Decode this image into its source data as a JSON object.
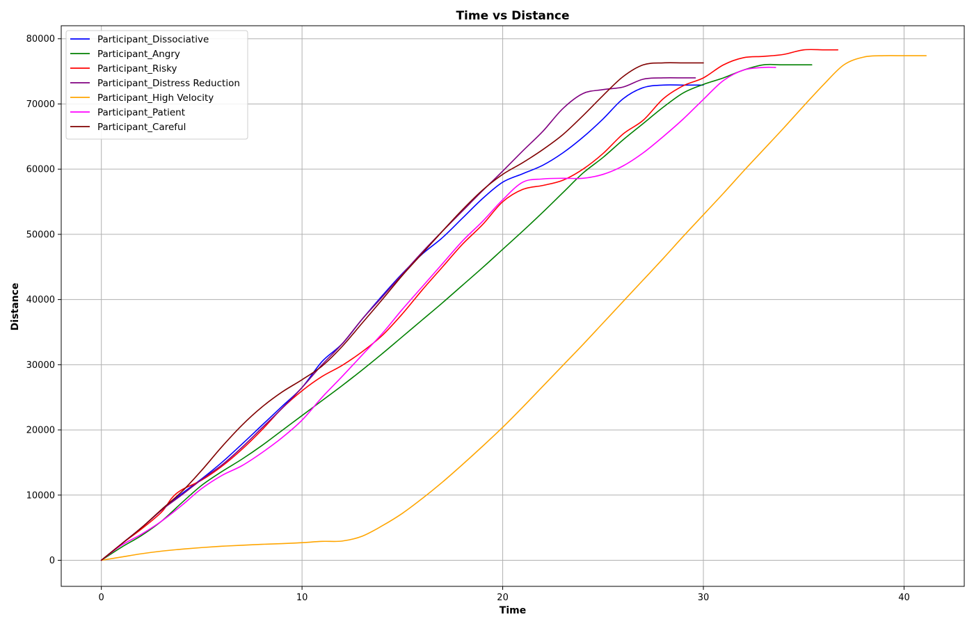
{
  "chart_data": {
    "type": "line",
    "title": "Time vs Distance",
    "xlabel": "Time",
    "ylabel": "Distance",
    "xlim": [
      -2,
      43
    ],
    "ylim": [
      -4000,
      82000
    ],
    "xticks": [
      0,
      10,
      20,
      30,
      40
    ],
    "yticks": [
      0,
      10000,
      20000,
      30000,
      40000,
      50000,
      60000,
      70000,
      80000
    ],
    "grid": true,
    "legend_position": "top-left",
    "series": [
      {
        "name": "Participant_Dissociative",
        "color": "#0000ff",
        "x": [
          0,
          1,
          2,
          3,
          4,
          5,
          6,
          7,
          8,
          9,
          10,
          11,
          12,
          13,
          14,
          15,
          16,
          17,
          18,
          19,
          20,
          21,
          22,
          23,
          24,
          25,
          26,
          27,
          28,
          29,
          30
        ],
        "y": [
          0,
          2500,
          5000,
          7700,
          10200,
          12500,
          15000,
          17800,
          20700,
          23600,
          26500,
          30500,
          33200,
          37000,
          40600,
          44000,
          47000,
          49500,
          52500,
          55500,
          58000,
          59300,
          60600,
          62500,
          64900,
          67700,
          70800,
          72500,
          72900,
          72900,
          72900
        ]
      },
      {
        "name": "Participant_Angry",
        "color": "#008000",
        "x": [
          0,
          1,
          2,
          3,
          4,
          5,
          6,
          7,
          8,
          9,
          10,
          11,
          12,
          13,
          14,
          15,
          16,
          17,
          18,
          19,
          20,
          21,
          22,
          23,
          24,
          25,
          26,
          27,
          28,
          29,
          30,
          31,
          32,
          33,
          34,
          35.4
        ],
        "y": [
          0,
          2000,
          3800,
          6000,
          8800,
          11500,
          13600,
          15500,
          17600,
          19900,
          22200,
          24500,
          26800,
          29200,
          31700,
          34300,
          36900,
          39500,
          42200,
          44900,
          47700,
          50500,
          53400,
          56400,
          59400,
          61800,
          64500,
          67000,
          69500,
          71700,
          73000,
          74000,
          75200,
          76000,
          76000,
          76000
        ]
      },
      {
        "name": "Participant_Risky",
        "color": "#ff0000",
        "x": [
          0,
          1,
          2,
          3,
          3.5,
          4,
          5,
          6,
          7,
          8,
          9,
          10,
          11,
          12,
          13,
          14,
          15,
          16,
          17,
          18,
          19,
          20,
          21,
          22,
          23,
          24,
          25,
          26,
          27,
          28,
          29,
          30,
          31,
          32,
          33,
          34,
          35,
          36,
          36.7
        ],
        "y": [
          0,
          2500,
          4800,
          7400,
          9500,
          10800,
          12300,
          14400,
          17000,
          20000,
          23300,
          26000,
          28200,
          29900,
          32000,
          34500,
          37800,
          41500,
          45000,
          48500,
          51500,
          55000,
          56900,
          57500,
          58300,
          60000,
          62400,
          65400,
          67500,
          70800,
          72800,
          74000,
          76000,
          77100,
          77300,
          77600,
          78300,
          78300,
          78300
        ]
      },
      {
        "name": "Participant_Distress Reduction",
        "color": "#800080",
        "x": [
          0,
          1,
          2,
          3,
          4,
          5,
          6,
          7,
          8,
          9,
          10,
          11,
          12,
          13,
          14,
          15,
          16,
          17,
          18,
          19,
          20,
          21,
          22,
          23,
          24,
          25,
          26,
          27,
          28,
          29,
          29.6
        ],
        "y": [
          0,
          2500,
          5000,
          7700,
          10000,
          12400,
          14600,
          17300,
          20300,
          23300,
          26500,
          30000,
          33200,
          37000,
          40400,
          43900,
          47300,
          50500,
          53600,
          56700,
          59700,
          62800,
          65800,
          69300,
          71600,
          72200,
          72600,
          73800,
          74000,
          74000,
          74000
        ]
      },
      {
        "name": "Participant_High Velocity",
        "color": "#ffa500",
        "x": [
          0,
          1,
          2,
          3,
          4,
          5,
          6,
          7,
          8,
          9,
          10,
          11,
          12,
          13,
          14,
          15,
          16,
          17,
          18,
          19,
          20,
          21,
          22,
          23,
          24,
          25,
          26,
          27,
          28,
          29,
          30,
          31,
          32,
          33,
          34,
          35,
          36,
          37,
          38,
          39,
          40,
          41.1
        ],
        "y": [
          0,
          500,
          1000,
          1400,
          1700,
          1950,
          2150,
          2300,
          2450,
          2550,
          2700,
          2900,
          2950,
          3700,
          5300,
          7200,
          9500,
          12000,
          14700,
          17500,
          20400,
          23500,
          26700,
          29900,
          33100,
          36400,
          39700,
          43000,
          46300,
          49700,
          53000,
          56300,
          59700,
          63000,
          66300,
          69700,
          73000,
          76000,
          77200,
          77400,
          77400,
          77400
        ]
      },
      {
        "name": "Participant_Patient",
        "color": "#ff00ff",
        "x": [
          0,
          1,
          2,
          3,
          4,
          5,
          6,
          7,
          8,
          9,
          10,
          11,
          12,
          13,
          14,
          15,
          16,
          17,
          18,
          19,
          20,
          21,
          22,
          23,
          24,
          25,
          26,
          27,
          28,
          29,
          30,
          31,
          32,
          33,
          33.6
        ],
        "y": [
          0,
          2300,
          4000,
          6000,
          8400,
          11000,
          13000,
          14500,
          16500,
          18800,
          21500,
          25000,
          28200,
          31500,
          34800,
          38500,
          42000,
          45500,
          49000,
          52000,
          55300,
          58000,
          58500,
          58600,
          58600,
          59200,
          60500,
          62500,
          65000,
          67700,
          70700,
          73600,
          75200,
          75600,
          75600
        ]
      },
      {
        "name": "Participant_Careful",
        "color": "#800000",
        "x": [
          0,
          1,
          2,
          3,
          4,
          5,
          6,
          7,
          8,
          9,
          10,
          11,
          12,
          13,
          14,
          15,
          16,
          17,
          18,
          19,
          20,
          21,
          22,
          23,
          24,
          25,
          26,
          27,
          28,
          29,
          30
        ],
        "y": [
          0,
          2500,
          5000,
          7800,
          10500,
          13800,
          17400,
          20700,
          23500,
          25800,
          27700,
          29800,
          32800,
          36400,
          40000,
          43700,
          47100,
          50500,
          53800,
          56800,
          59200,
          61000,
          63000,
          65300,
          68200,
          71300,
          74200,
          76000,
          76300,
          76300,
          76300
        ]
      }
    ]
  }
}
